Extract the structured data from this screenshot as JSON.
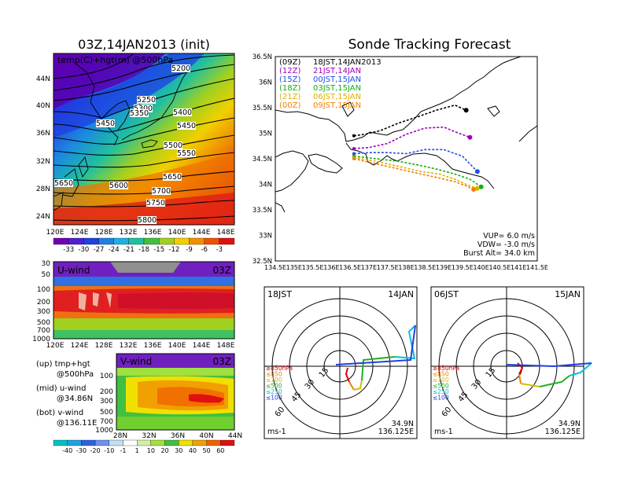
{
  "panel_init": {
    "title": "03Z,14JAN2013 (init)",
    "subtitle": "temp(C)+hgt(m) @500hPa",
    "lat_labels": [
      "44N",
      "40N",
      "36N",
      "32N",
      "28N",
      "24N"
    ],
    "lon_labels": [
      "120E",
      "124E",
      "128E",
      "132E",
      "136E",
      "140E",
      "144E",
      "148E"
    ],
    "contour_labels": [
      "5200",
      "5250",
      "5300",
      "5350",
      "5400",
      "5450",
      "5450",
      "5500",
      "5550",
      "5600",
      "5650",
      "5650",
      "5700",
      "5750",
      "5800"
    ],
    "colorbar_labels": [
      "-33",
      "-30",
      "-27",
      "-24",
      "-21",
      "-18",
      "-15",
      "-12",
      "-9",
      "-6",
      "-3"
    ]
  },
  "panel_u": {
    "title": "U-wind",
    "time": "03Z",
    "p_labels": [
      "30",
      "50",
      "100",
      "200",
      "300",
      "500",
      "700",
      "1000"
    ],
    "lon_labels": [
      "120E",
      "124E",
      "128E",
      "132E",
      "136E",
      "140E",
      "144E",
      "148E"
    ]
  },
  "panel_v": {
    "title": "V-wind",
    "time": "03Z",
    "p_labels": [
      "100",
      "200",
      "300",
      "500",
      "700",
      "1000"
    ],
    "lat_labels": [
      "28N",
      "32N",
      "36N",
      "40N",
      "44N"
    ],
    "colorbar_labels": [
      "-40",
      "-30",
      "-20",
      "-10",
      "-1",
      "1",
      "10",
      "20",
      "30",
      "40",
      "50",
      "60"
    ]
  },
  "legend_left": [
    {
      "a": "(up) tmp+hgt",
      "b": "@500hPa"
    },
    {
      "a": "(mid) u-wind",
      "b": "@34.86N"
    },
    {
      "a": "(bot) v-wind",
      "b": "@136.11E"
    }
  ],
  "track": {
    "title": "Sonde Tracking Forecast",
    "lat_labels": [
      "36.5N",
      "36N",
      "35.5N",
      "35N",
      "34.5N",
      "34N",
      "33.5N",
      "33N",
      "32.5N"
    ],
    "lon_labels": [
      "134.5E",
      "135E",
      "135.5E",
      "136E",
      "136.5E",
      "137E",
      "137.5E",
      "138E",
      "138.5E",
      "139E",
      "139.5E",
      "140E",
      "140.5E",
      "141E",
      "141.5E"
    ],
    "legend": [
      {
        "code": "(09Z)",
        "text": "18JST,14JAN2013",
        "color": "#000000"
      },
      {
        "code": "(12Z)",
        "text": "21JST,14JAN",
        "color": "#a000c0"
      },
      {
        "code": "(15Z)",
        "text": "00JST,15JAN",
        "color": "#2050e0"
      },
      {
        "code": "(18Z)",
        "text": "03JST,15JAN",
        "color": "#10b010"
      },
      {
        "code": "(21Z)",
        "text": "06JST,15JAN",
        "color": "#e0b000"
      },
      {
        "code": "(00Z)",
        "text": "09JST,15JAN",
        "color": "#f08000"
      }
    ],
    "params": [
      "VUP= 6.0 m/s",
      "VDW= -3.0 m/s",
      "Burst Alt= 34.0 km"
    ]
  },
  "hodo1": {
    "time": "18JST",
    "date": "14JAN",
    "lat": "34.9N",
    "lon": "136.125E",
    "unit": "ms-1"
  },
  "hodo2": {
    "time": "06JST",
    "date": "15JAN",
    "lat": "34.9N",
    "lon": "136.125E",
    "unit": "ms-1"
  },
  "hodo_rings": [
    "15",
    "30",
    "45",
    "60"
  ],
  "hodo_legend": [
    {
      "text": "≥850hPa",
      "color": "#e00000"
    },
    {
      "text": "≤850",
      "color": "#f08000"
    },
    {
      "text": "≤700",
      "color": "#d0c000"
    },
    {
      "text": "≤500",
      "color": "#20b020"
    },
    {
      "text": "≤250",
      "color": "#00c0e0"
    },
    {
      "text": "≤100",
      "color": "#2040e0"
    }
  ],
  "chart_data": [
    {
      "type": "heatmap",
      "title": "03Z,14JAN2013 (init)",
      "subtitle": "temp(C)+hgt(m) @500hPa",
      "xlim": [
        120,
        149
      ],
      "ylim": [
        22,
        47
      ],
      "colorbar": [
        -33,
        -30,
        -27,
        -24,
        -21,
        -18,
        -15,
        -12,
        -9,
        -6,
        -3
      ]
    },
    {
      "type": "heatmap",
      "title": "U-wind",
      "pressure_levels": [
        30,
        50,
        100,
        200,
        300,
        500,
        700,
        1000
      ],
      "xlim": [
        120,
        149
      ]
    },
    {
      "type": "heatmap",
      "title": "V-wind",
      "xlim": [
        28,
        44
      ],
      "colorbar": [
        -40,
        -30,
        -20,
        -10,
        -1,
        1,
        10,
        20,
        30,
        40,
        50,
        60
      ]
    },
    {
      "type": "line",
      "title": "Sonde Tracking Forecast",
      "xlim": [
        134.5,
        141.5
      ],
      "ylim": [
        32.5,
        36.5
      ],
      "series": [
        {
          "name": "(09Z) 18JST,14JAN2013",
          "x": [
            136.6,
            136.9,
            137.3,
            137.8,
            138.3,
            138.8,
            139.3,
            139.6
          ],
          "y": [
            34.95,
            34.98,
            35.05,
            35.2,
            35.32,
            35.45,
            35.55,
            35.45
          ]
        },
        {
          "name": "(12Z) 21JST,14JAN",
          "x": [
            136.6,
            137.0,
            137.5,
            138.0,
            138.5,
            139.0,
            139.4,
            139.7
          ],
          "y": [
            34.7,
            34.72,
            34.8,
            34.98,
            35.1,
            35.12,
            35.0,
            34.92
          ]
        },
        {
          "name": "(15Z) 00JST,15JAN",
          "x": [
            136.6,
            137.0,
            137.5,
            138.0,
            138.5,
            139.0,
            139.5,
            139.9
          ],
          "y": [
            34.6,
            34.62,
            34.62,
            34.6,
            34.68,
            34.68,
            34.55,
            34.25
          ]
        },
        {
          "name": "(18Z) 03JST,15JAN",
          "x": [
            136.6,
            137.2,
            137.8,
            138.3,
            138.8,
            139.3,
            139.7,
            140.0
          ],
          "y": [
            34.55,
            34.5,
            34.45,
            34.38,
            34.3,
            34.2,
            34.1,
            33.95
          ]
        },
        {
          "name": "(21Z) 06JST,15JAN",
          "x": [
            136.6,
            137.2,
            137.8,
            138.4,
            138.9,
            139.3,
            139.6,
            139.9
          ],
          "y": [
            34.52,
            34.45,
            34.35,
            34.25,
            34.2,
            34.1,
            34.0,
            33.92
          ]
        },
        {
          "name": "(00Z) 09JST,15JAN",
          "x": [
            136.6,
            137.2,
            137.8,
            138.4,
            138.9,
            139.3,
            139.6,
            139.8
          ],
          "y": [
            34.5,
            34.4,
            34.3,
            34.2,
            34.12,
            34.05,
            33.97,
            33.9
          ]
        }
      ]
    },
    {
      "type": "line",
      "title": "hodograph 18JST 14JAN",
      "unit": "ms-1",
      "rings": [
        15,
        30,
        45,
        60
      ]
    },
    {
      "type": "line",
      "title": "hodograph 06JST 15JAN",
      "unit": "ms-1",
      "rings": [
        15,
        30,
        45,
        60
      ]
    }
  ]
}
